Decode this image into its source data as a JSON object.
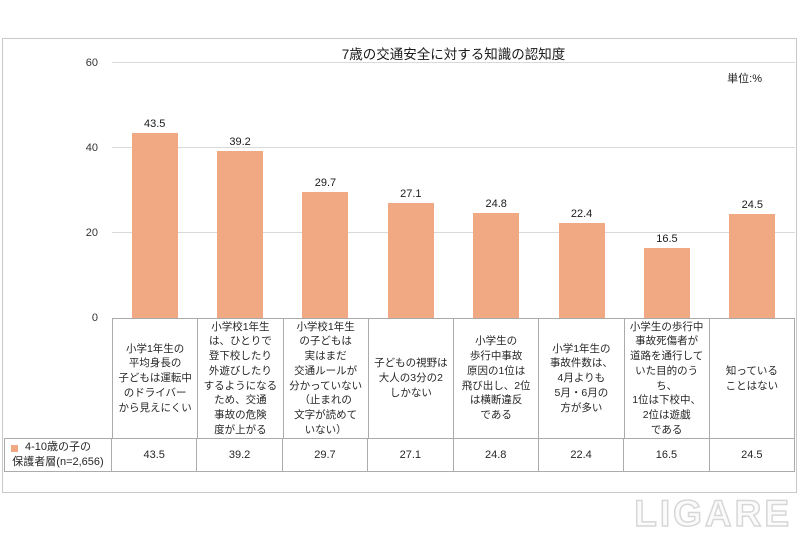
{
  "chart_data": {
    "type": "bar",
    "title": "7歳の交通安全に対する知識の認知度",
    "unit_label": "単位:%",
    "legend": {
      "label": "4-10歳の子の\n保護者層(n=2,656)",
      "position": "bottom-left"
    },
    "categories": [
      "小学1年生の\n平均身長の\n子どもは運転中\nのドライバー\nから見えにくい",
      "小学校1年生\nは、ひとりで\n登下校したり\n外遊びしたり\nするようになる\nため、交通\n事故の危険\n度が上がる",
      "小学校1年生\nの子どもは\n実はまだ\n交通ルールが\n分かっていない\n（止まれの\n文字が読めて\nいない）",
      "子どもの視野は\n大人の3分の2\nしかない",
      "小学生の\n歩行中事故\n原因の1位は\n飛び出し、2位\nは横断違反\nである",
      "小学1年生の\n事故件数は、\n4月よりも\n5月・6月の\n方が多い",
      "小学生の歩行中\n事故死傷者が\n道路を通行して\nいた目的のうち、\n1位は下校中、\n2位は遊戯\nである",
      "知っている\nことはない"
    ],
    "values": [
      43.5,
      39.2,
      29.7,
      27.1,
      24.8,
      22.4,
      16.5,
      24.5
    ],
    "ylim": [
      0,
      60
    ],
    "yticks": [
      0,
      20,
      40,
      60
    ],
    "grid": true,
    "bar_color": "#F0A983"
  },
  "watermark": "LIGARE",
  "colors": {
    "bar": "#F0A983",
    "gridline": "#D9D9D9",
    "table_border": "#ABABAB",
    "text": "#262626"
  }
}
